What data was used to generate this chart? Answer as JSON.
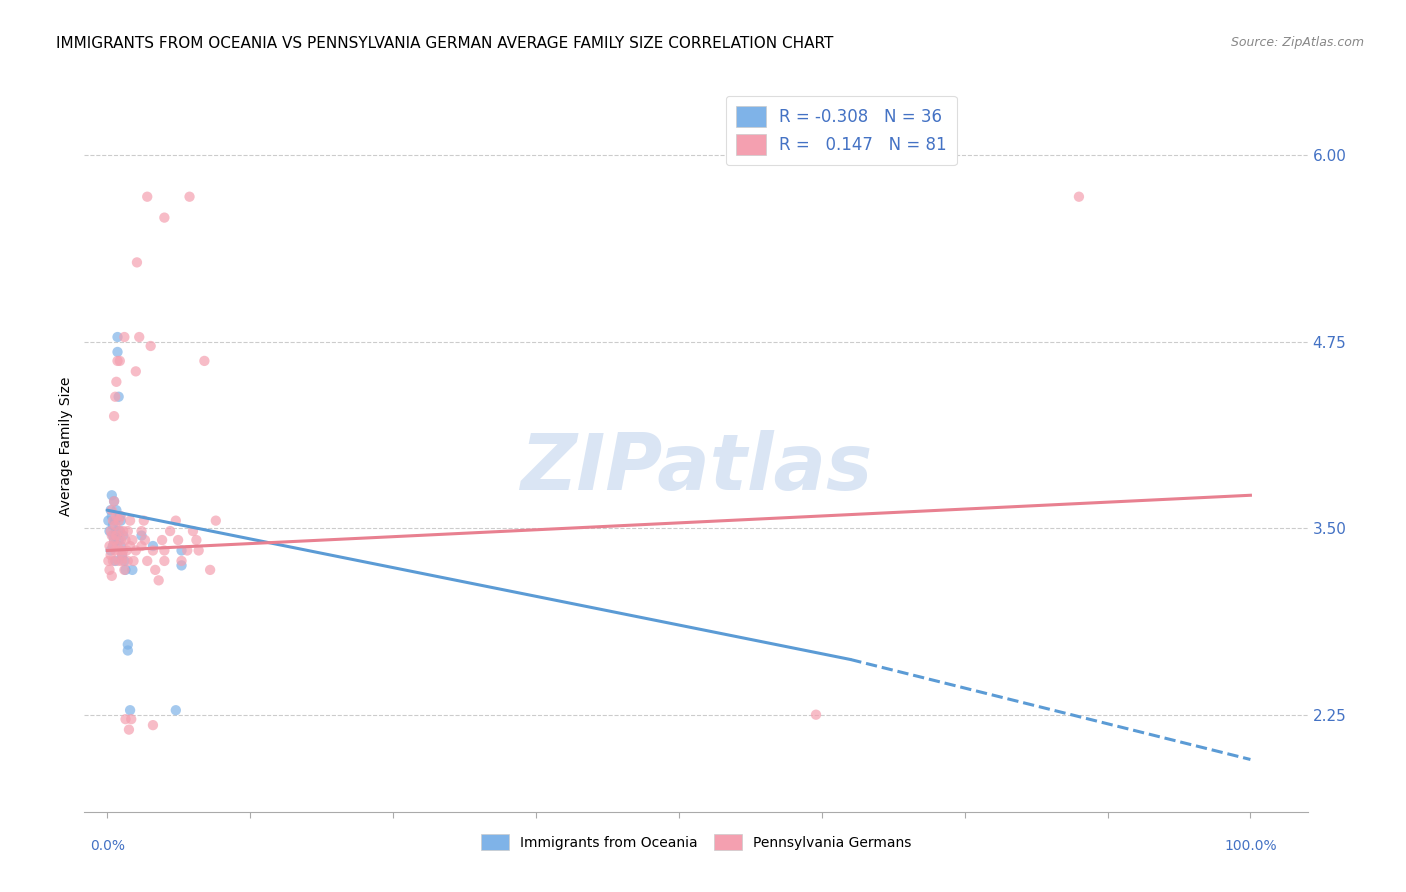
{
  "title": "IMMIGRANTS FROM OCEANIA VS PENNSYLVANIA GERMAN AVERAGE FAMILY SIZE CORRELATION CHART",
  "source": "Source: ZipAtlas.com",
  "ylabel": "Average Family Size",
  "background_color": "#ffffff",
  "grid_color": "#cccccc",
  "watermark": "ZIPatlas",
  "yticks": [
    2.25,
    3.5,
    4.75,
    6.0
  ],
  "ylim": [
    1.6,
    6.5
  ],
  "xlim": [
    -2,
    105
  ],
  "xticks": [
    0,
    12.5,
    25,
    37.5,
    50,
    62.5,
    75,
    87.5,
    100
  ],
  "blue_scatter_color": "#7fb3e8",
  "pink_scatter_color": "#f4a0b0",
  "blue_line_color": "#5b9bd5",
  "pink_line_color": "#e88090",
  "scatter_size": 55,
  "scatter_alpha": 0.7,
  "line_width": 2.2,
  "legend_text_color": "#4472c4",
  "blue_scatter": [
    [
      0.1,
      3.55
    ],
    [
      0.2,
      3.48
    ],
    [
      0.3,
      3.62
    ],
    [
      0.3,
      3.35
    ],
    [
      0.4,
      3.72
    ],
    [
      0.4,
      3.58
    ],
    [
      0.5,
      3.45
    ],
    [
      0.5,
      3.52
    ],
    [
      0.5,
      3.38
    ],
    [
      0.6,
      3.68
    ],
    [
      0.6,
      3.42
    ],
    [
      0.7,
      3.55
    ],
    [
      0.7,
      3.28
    ],
    [
      0.8,
      3.48
    ],
    [
      0.8,
      3.62
    ],
    [
      0.9,
      4.78
    ],
    [
      0.9,
      4.68
    ],
    [
      1.0,
      4.38
    ],
    [
      1.0,
      3.42
    ],
    [
      1.1,
      3.58
    ],
    [
      1.1,
      3.48
    ],
    [
      1.2,
      3.38
    ],
    [
      1.2,
      3.55
    ],
    [
      1.3,
      3.32
    ],
    [
      1.4,
      3.45
    ],
    [
      1.5,
      3.28
    ],
    [
      1.6,
      3.22
    ],
    [
      1.8,
      2.72
    ],
    [
      1.8,
      2.68
    ],
    [
      2.0,
      2.28
    ],
    [
      2.2,
      3.22
    ],
    [
      3.0,
      3.45
    ],
    [
      4.0,
      3.38
    ],
    [
      6.0,
      2.28
    ],
    [
      6.5,
      3.35
    ],
    [
      6.5,
      3.25
    ]
  ],
  "pink_scatter": [
    [
      0.1,
      3.28
    ],
    [
      0.2,
      3.38
    ],
    [
      0.2,
      3.22
    ],
    [
      0.3,
      3.32
    ],
    [
      0.3,
      3.48
    ],
    [
      0.4,
      3.18
    ],
    [
      0.4,
      3.62
    ],
    [
      0.4,
      3.45
    ],
    [
      0.5,
      3.38
    ],
    [
      0.5,
      3.55
    ],
    [
      0.5,
      3.28
    ],
    [
      0.6,
      3.42
    ],
    [
      0.6,
      3.68
    ],
    [
      0.6,
      4.25
    ],
    [
      0.7,
      3.35
    ],
    [
      0.7,
      4.38
    ],
    [
      0.7,
      3.52
    ],
    [
      0.8,
      3.45
    ],
    [
      0.8,
      3.58
    ],
    [
      0.8,
      4.48
    ],
    [
      0.9,
      4.62
    ],
    [
      0.9,
      3.38
    ],
    [
      1.0,
      3.28
    ],
    [
      1.0,
      3.55
    ],
    [
      1.1,
      3.35
    ],
    [
      1.1,
      4.62
    ],
    [
      1.1,
      3.48
    ],
    [
      1.2,
      3.42
    ],
    [
      1.2,
      3.58
    ],
    [
      1.3,
      3.32
    ],
    [
      1.3,
      3.28
    ],
    [
      1.4,
      3.48
    ],
    [
      1.4,
      3.35
    ],
    [
      1.5,
      3.22
    ],
    [
      1.5,
      4.78
    ],
    [
      1.6,
      3.42
    ],
    [
      1.6,
      2.22
    ],
    [
      1.7,
      3.35
    ],
    [
      1.8,
      3.48
    ],
    [
      1.8,
      3.28
    ],
    [
      1.9,
      2.15
    ],
    [
      2.0,
      3.38
    ],
    [
      2.0,
      3.55
    ],
    [
      2.1,
      2.22
    ],
    [
      2.2,
      3.42
    ],
    [
      2.3,
      3.28
    ],
    [
      2.5,
      4.55
    ],
    [
      2.5,
      3.35
    ],
    [
      2.6,
      5.28
    ],
    [
      2.8,
      4.78
    ],
    [
      3.0,
      3.48
    ],
    [
      3.0,
      3.38
    ],
    [
      3.2,
      3.55
    ],
    [
      3.3,
      3.42
    ],
    [
      3.5,
      5.72
    ],
    [
      3.5,
      3.28
    ],
    [
      3.8,
      4.72
    ],
    [
      4.0,
      3.35
    ],
    [
      4.0,
      2.18
    ],
    [
      4.2,
      3.22
    ],
    [
      4.5,
      3.15
    ],
    [
      4.8,
      3.42
    ],
    [
      5.0,
      3.35
    ],
    [
      5.0,
      3.28
    ],
    [
      5.0,
      5.58
    ],
    [
      5.5,
      3.48
    ],
    [
      6.0,
      3.55
    ],
    [
      6.2,
      3.42
    ],
    [
      6.5,
      3.28
    ],
    [
      7.0,
      3.35
    ],
    [
      7.2,
      5.72
    ],
    [
      7.5,
      3.48
    ],
    [
      7.8,
      3.42
    ],
    [
      8.0,
      3.35
    ],
    [
      8.5,
      4.62
    ],
    [
      9.0,
      3.22
    ],
    [
      9.5,
      3.55
    ],
    [
      62.0,
      2.25
    ],
    [
      85.0,
      5.72
    ]
  ],
  "blue_line": {
    "x0": 0.0,
    "y0": 3.62,
    "x1": 65.0,
    "y1": 2.62,
    "x1_dash": 100.0,
    "y1_dash": 1.95
  },
  "pink_line": {
    "x0": 0.0,
    "y0": 3.35,
    "x1": 100.0,
    "y1": 3.72
  }
}
